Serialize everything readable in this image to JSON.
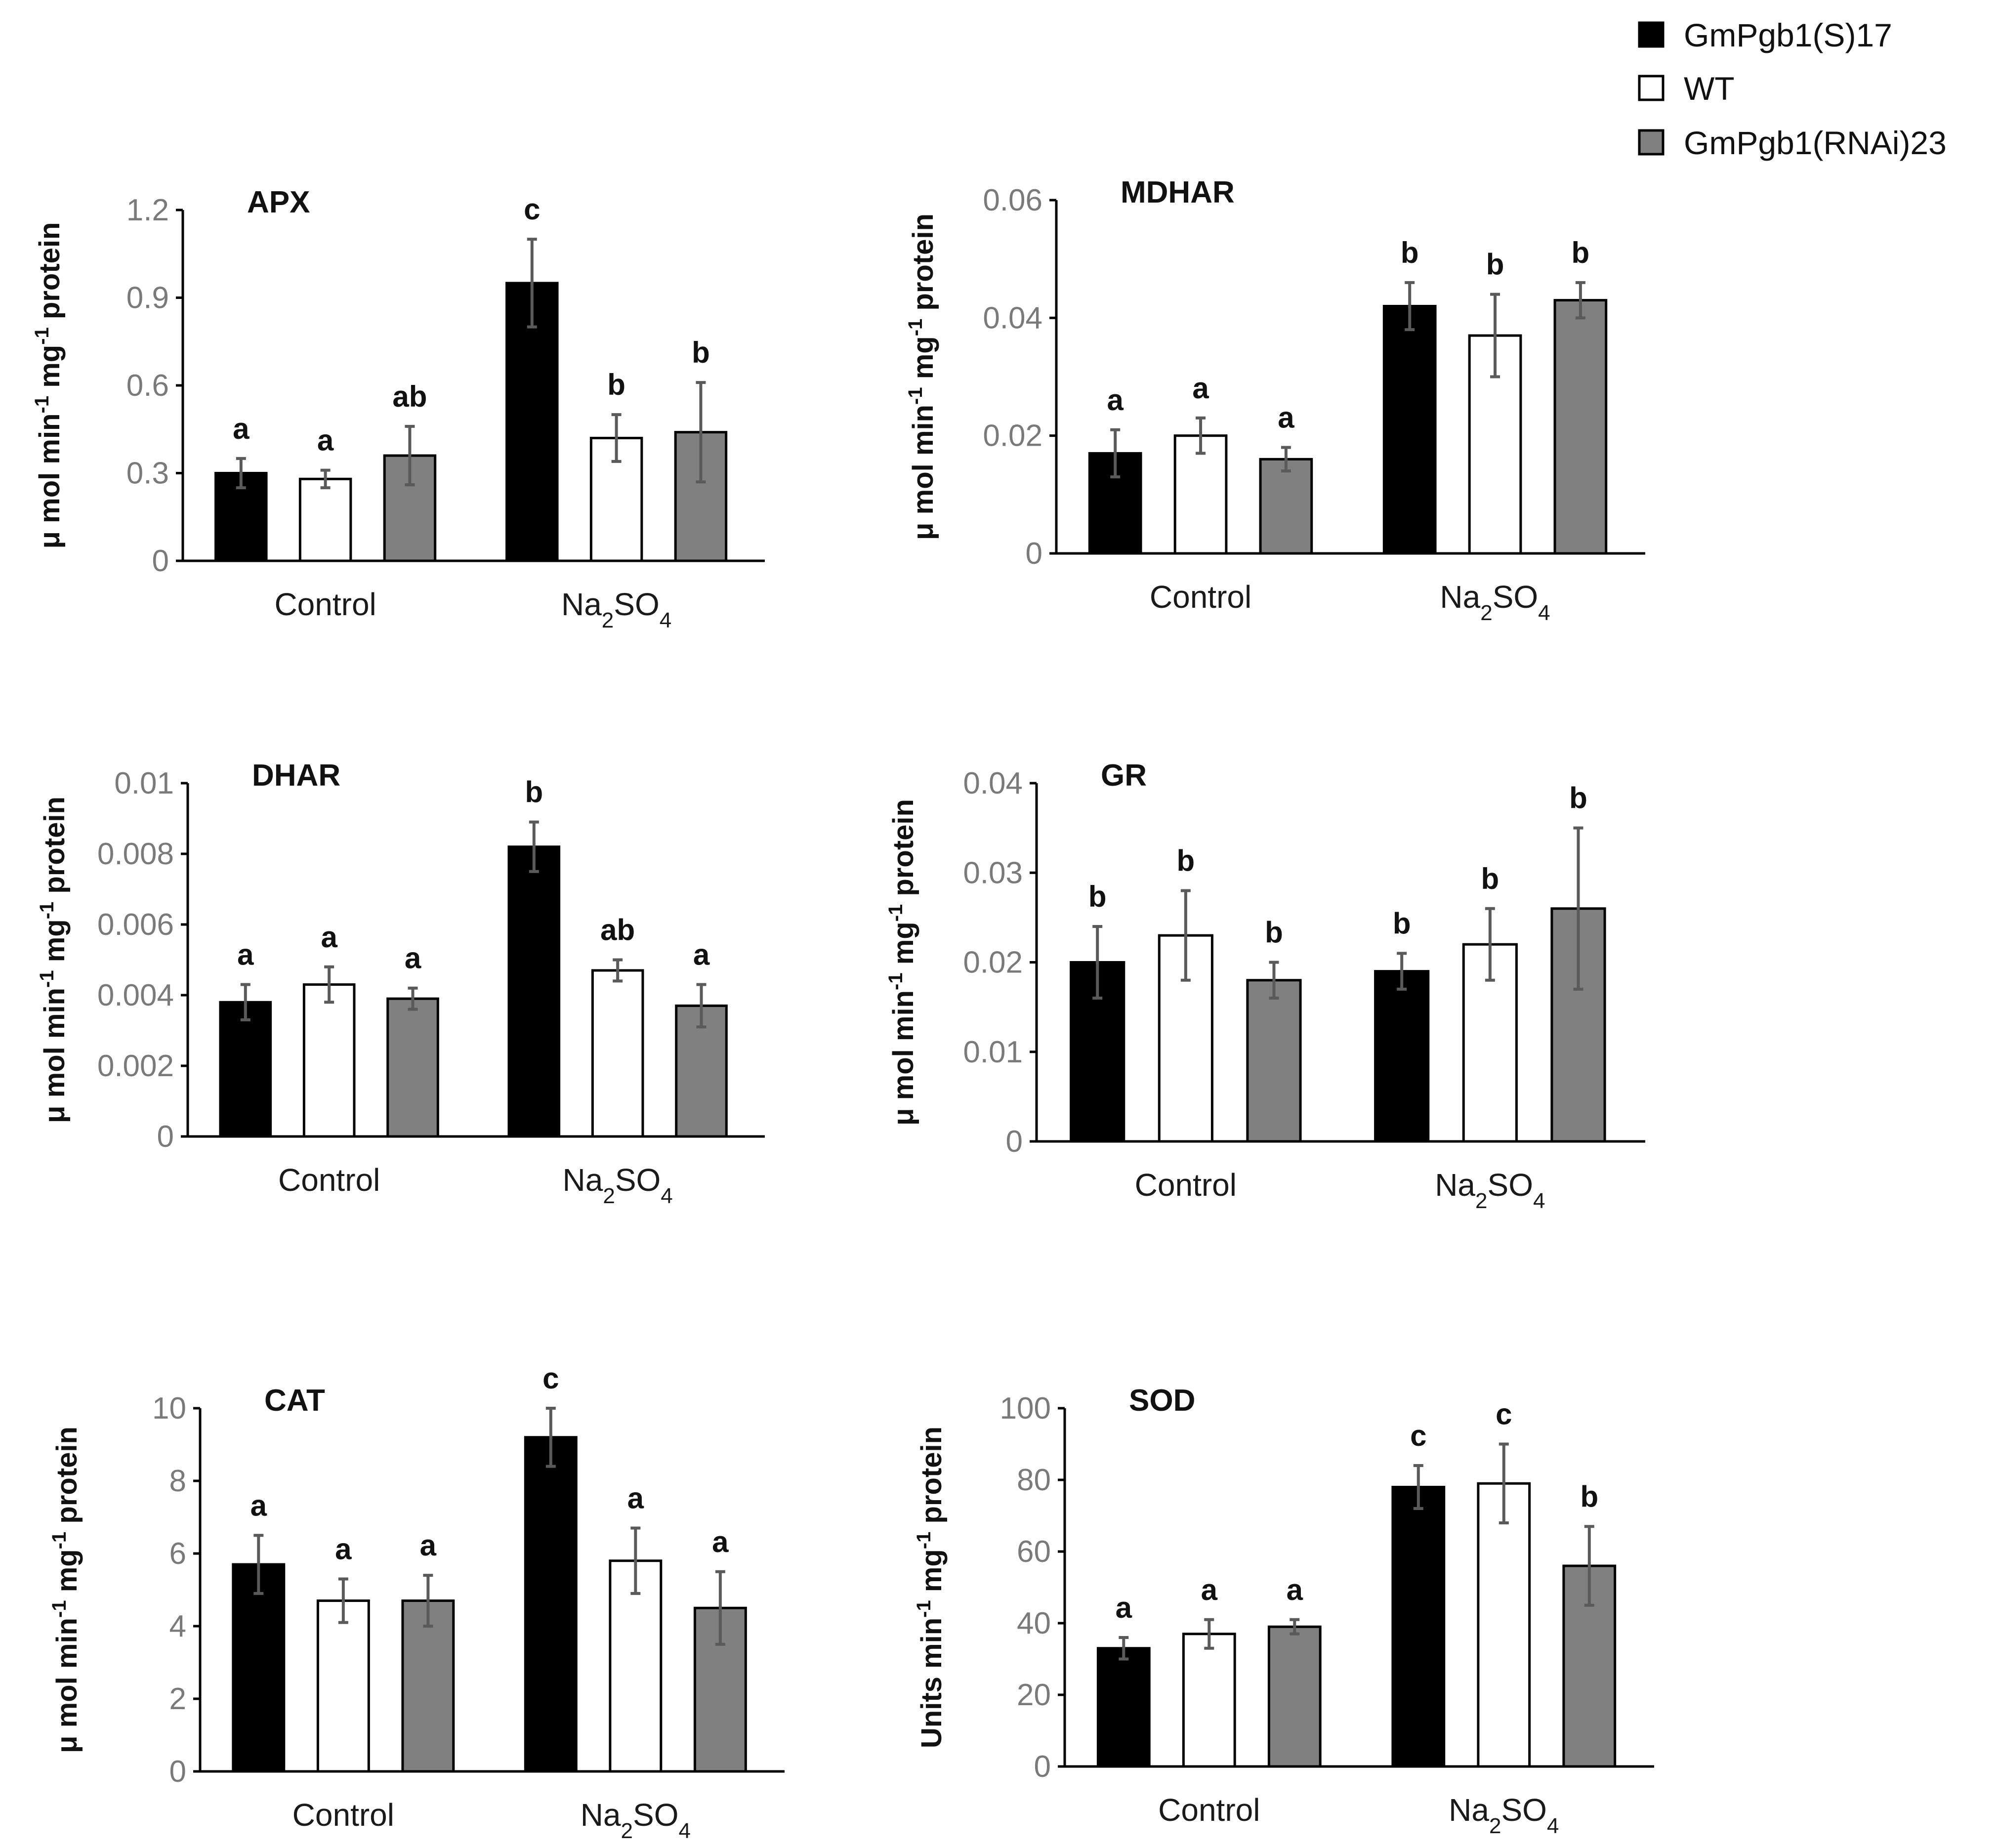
{
  "legend": [
    {
      "label": "GmPgb1(S)17",
      "color": "#000000"
    },
    {
      "label": "WT",
      "color": "#ffffff"
    },
    {
      "label": "GmPgb1(RNAi)23",
      "color": "#808080"
    }
  ],
  "chart_data": [
    {
      "type": "bar",
      "title": "APX",
      "ylabel": [
        "μ mol min",
        "-1",
        " mg",
        "-1",
        " protein"
      ],
      "categories": [
        "Control",
        "Na2SO4"
      ],
      "ylim": [
        0,
        1.2
      ],
      "yticks": [
        "0",
        "0.3",
        "0.6",
        "0.9",
        "1.2"
      ],
      "series": [
        {
          "name": "GmPgb1(S)17",
          "values": [
            0.3,
            0.95
          ],
          "errors": [
            0.05,
            0.15
          ],
          "letters": [
            "a",
            "c"
          ]
        },
        {
          "name": "WT",
          "values": [
            0.28,
            0.42
          ],
          "errors": [
            0.03,
            0.08
          ],
          "letters": [
            "a",
            "b"
          ]
        },
        {
          "name": "GmPgb1(RNAi)23",
          "values": [
            0.36,
            0.44
          ],
          "errors": [
            0.1,
            0.17
          ],
          "letters": [
            "ab",
            "b"
          ]
        }
      ]
    },
    {
      "type": "bar",
      "title": "MDHAR",
      "ylabel": [
        "μ mol min",
        "-1",
        " mg",
        "-1",
        " protein"
      ],
      "categories": [
        "Control",
        "Na2SO4"
      ],
      "ylim": [
        0,
        0.06
      ],
      "yticks": [
        "0",
        "0.02",
        "0.04",
        "0.06"
      ],
      "series": [
        {
          "name": "GmPgb1(S)17",
          "values": [
            0.017,
            0.042
          ],
          "errors": [
            0.004,
            0.004
          ],
          "letters": [
            "a",
            "b"
          ]
        },
        {
          "name": "WT",
          "values": [
            0.02,
            0.037
          ],
          "errors": [
            0.003,
            0.007
          ],
          "letters": [
            "a",
            "b"
          ]
        },
        {
          "name": "GmPgb1(RNAi)23",
          "values": [
            0.016,
            0.043
          ],
          "errors": [
            0.002,
            0.003
          ],
          "letters": [
            "a",
            "b"
          ]
        }
      ]
    },
    {
      "type": "bar",
      "title": "DHAR",
      "ylabel": [
        "μ mol min",
        "-1",
        " mg",
        "-1",
        " protein"
      ],
      "categories": [
        "Control",
        "Na2SO4"
      ],
      "ylim": [
        0,
        0.01
      ],
      "yticks": [
        "0",
        "0.002",
        "0.004",
        "0.006",
        "0.008",
        "0.01"
      ],
      "series": [
        {
          "name": "GmPgb1(S)17",
          "values": [
            0.0038,
            0.0082
          ],
          "errors": [
            0.0005,
            0.0007
          ],
          "letters": [
            "a",
            "b"
          ]
        },
        {
          "name": "WT",
          "values": [
            0.0043,
            0.0047
          ],
          "errors": [
            0.0005,
            0.0003
          ],
          "letters": [
            "a",
            "ab"
          ]
        },
        {
          "name": "GmPgb1(RNAi)23",
          "values": [
            0.0039,
            0.0037
          ],
          "errors": [
            0.0003,
            0.0006
          ],
          "letters": [
            "a",
            "a"
          ]
        }
      ]
    },
    {
      "type": "bar",
      "title": "GR",
      "ylabel": [
        "μ mol min",
        "-1",
        " mg",
        "-1",
        " protein"
      ],
      "categories": [
        "Control",
        "Na2SO4"
      ],
      "ylim": [
        0,
        0.04
      ],
      "yticks": [
        "0",
        "0.01",
        "0.02",
        "0.03",
        "0.04"
      ],
      "series": [
        {
          "name": "GmPgb1(S)17",
          "values": [
            0.02,
            0.019
          ],
          "errors": [
            0.004,
            0.002
          ],
          "letters": [
            "b",
            "b"
          ]
        },
        {
          "name": "WT",
          "values": [
            0.023,
            0.022
          ],
          "errors": [
            0.005,
            0.004
          ],
          "letters": [
            "b",
            "b"
          ]
        },
        {
          "name": "GmPgb1(RNAi)23",
          "values": [
            0.018,
            0.026
          ],
          "errors": [
            0.002,
            0.009
          ],
          "letters": [
            "b",
            "b"
          ]
        }
      ]
    },
    {
      "type": "bar",
      "title": "CAT",
      "ylabel": [
        "μ mol min",
        "-1",
        " mg",
        "-1",
        " protein"
      ],
      "categories": [
        "Control",
        "Na2SO4"
      ],
      "ylim": [
        0,
        10
      ],
      "yticks": [
        "0",
        "2",
        "4",
        "6",
        "8",
        "10"
      ],
      "series": [
        {
          "name": "GmPgb1(S)17",
          "values": [
            5.7,
            9.2
          ],
          "errors": [
            0.8,
            0.8
          ],
          "letters": [
            "a",
            "c"
          ]
        },
        {
          "name": "WT",
          "values": [
            4.7,
            5.8
          ],
          "errors": [
            0.6,
            0.9
          ],
          "letters": [
            "a",
            "a"
          ]
        },
        {
          "name": "GmPgb1(RNAi)23",
          "values": [
            4.7,
            4.5
          ],
          "errors": [
            0.7,
            1.0
          ],
          "letters": [
            "a",
            "a"
          ]
        }
      ]
    },
    {
      "type": "bar",
      "title": "SOD",
      "ylabel": [
        "Units min",
        "-1",
        " mg",
        "-1",
        " protein"
      ],
      "categories": [
        "Control",
        "Na2SO4"
      ],
      "ylim": [
        0,
        100
      ],
      "yticks": [
        "0",
        "20",
        "40",
        "60",
        "80",
        "100"
      ],
      "series": [
        {
          "name": "GmPgb1(S)17",
          "values": [
            33,
            78
          ],
          "errors": [
            3,
            6
          ],
          "letters": [
            "a",
            "c"
          ]
        },
        {
          "name": "WT",
          "values": [
            37,
            79
          ],
          "errors": [
            4,
            11
          ],
          "letters": [
            "a",
            "c"
          ]
        },
        {
          "name": "GmPgb1(RNAi)23",
          "values": [
            39,
            56
          ],
          "errors": [
            2,
            11
          ],
          "letters": [
            "a",
            "b"
          ]
        }
      ]
    }
  ]
}
